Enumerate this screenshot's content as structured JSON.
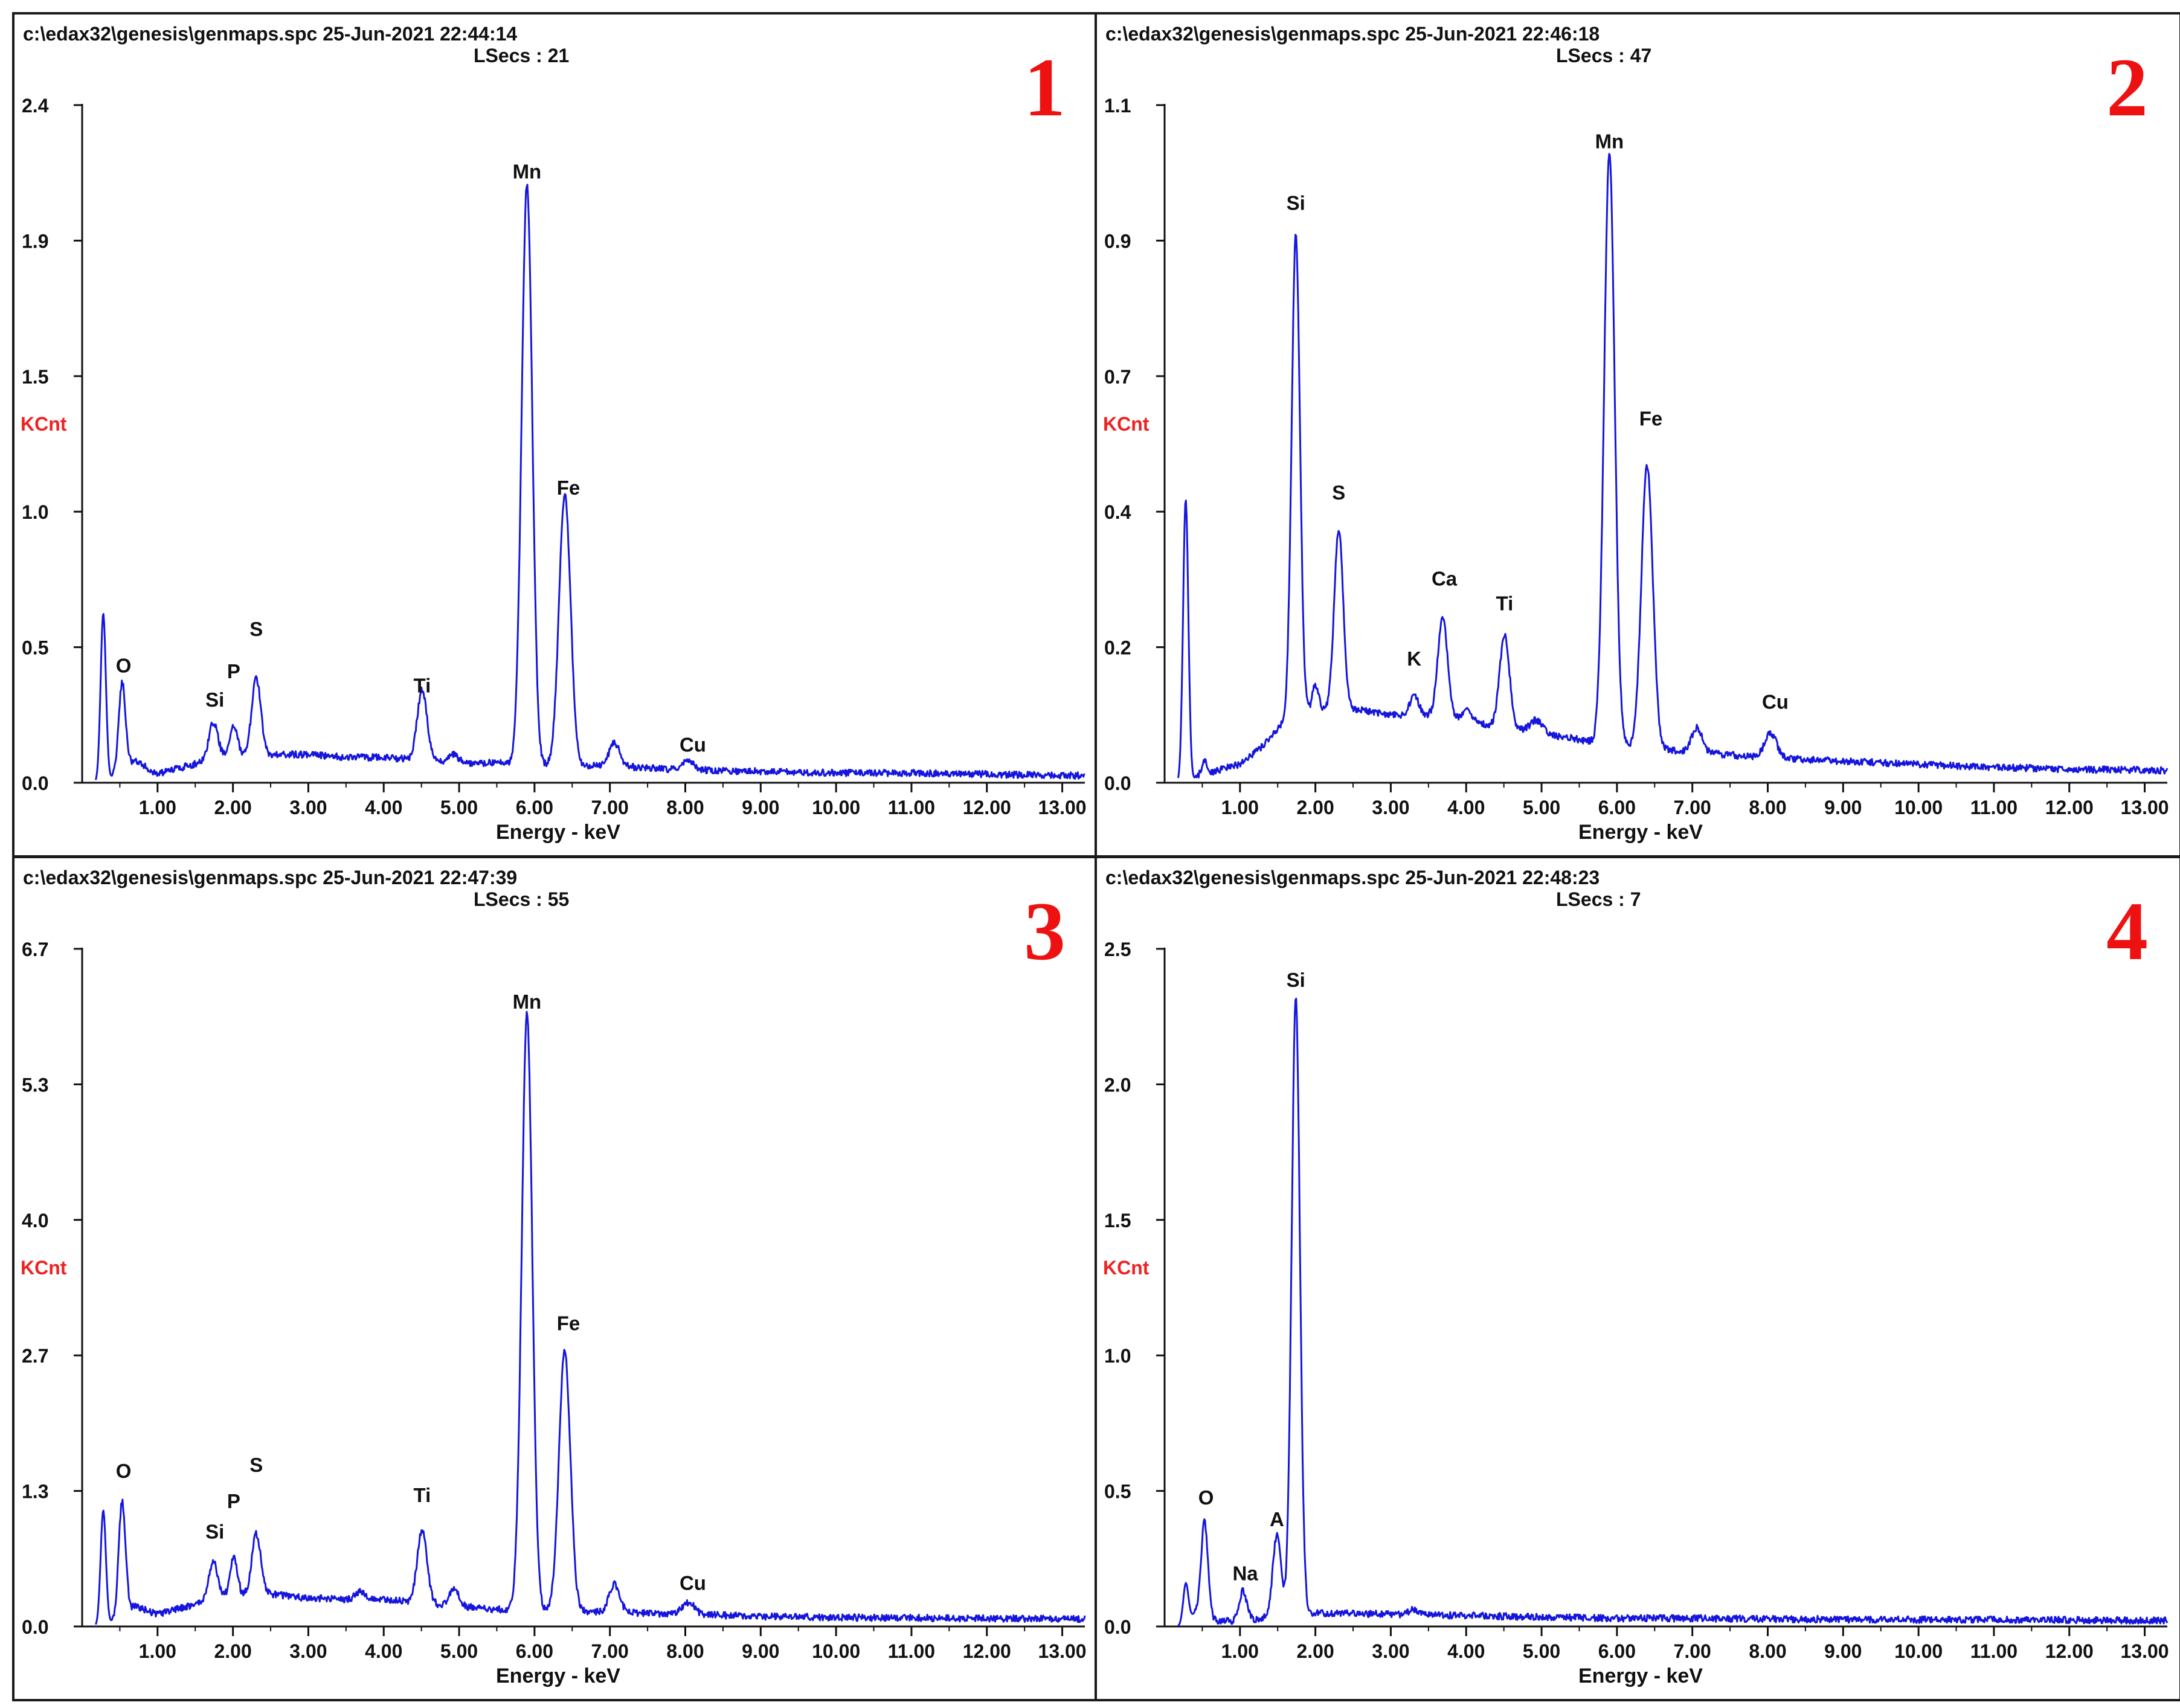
{
  "colors": {
    "trace": "#1515dd",
    "ylabel": "#ee2222",
    "panel_number": "#ee1111",
    "axis": "#111111"
  },
  "chart_data": [
    {
      "type": "line",
      "panel_number": "1",
      "file": "c:\\edax32\\genesis\\genmaps.spc",
      "date": "25-Jun-2021",
      "time": "22:44:14",
      "lsecs_label": "LSecs :",
      "lsecs": "21",
      "xlabel": "Energy - keV",
      "ylabel": "KCnt",
      "xlim": [
        0,
        13.3
      ],
      "ylim": [
        0,
        2.4
      ],
      "xticks": [
        "1.00",
        "2.00",
        "3.00",
        "4.00",
        "5.00",
        "6.00",
        "7.00",
        "8.00",
        "9.00",
        "10.00",
        "11.00",
        "12.00",
        "13.00"
      ],
      "yticks": [
        "0.0",
        "0.5",
        "1.0",
        "1.5",
        "1.9",
        "2.4"
      ],
      "baseline": [
        [
          0.18,
          0
        ],
        [
          0.3,
          0
        ],
        [
          0.7,
          0.08
        ],
        [
          1.0,
          0.03
        ],
        [
          1.4,
          0.06
        ],
        [
          2.0,
          0.1
        ],
        [
          2.5,
          0.1
        ],
        [
          3.0,
          0.1
        ],
        [
          3.5,
          0.09
        ],
        [
          4.0,
          0.09
        ],
        [
          4.5,
          0.08
        ],
        [
          5.0,
          0.07
        ],
        [
          5.5,
          0.07
        ],
        [
          6.0,
          0.06
        ],
        [
          7.0,
          0.06
        ],
        [
          8.0,
          0.045
        ],
        [
          9.0,
          0.04
        ],
        [
          10.0,
          0.035
        ],
        [
          11.0,
          0.035
        ],
        [
          12.0,
          0.03
        ],
        [
          13.3,
          0.025
        ]
      ],
      "peaks": [
        {
          "x": 0.28,
          "h": 0.6,
          "w": 0.035,
          "label": ""
        },
        {
          "x": 0.53,
          "h": 0.31,
          "w": 0.045,
          "label": "O"
        },
        {
          "x": 1.74,
          "h": 0.13,
          "w": 0.06,
          "label": "Si"
        },
        {
          "x": 2.01,
          "h": 0.1,
          "w": 0.05,
          "label": "P"
        },
        {
          "x": 2.31,
          "h": 0.27,
          "w": 0.06,
          "label": "S"
        },
        {
          "x": 4.51,
          "h": 0.25,
          "w": 0.065,
          "label": "Ti"
        },
        {
          "x": 4.93,
          "h": 0.03,
          "w": 0.06,
          "label": ""
        },
        {
          "x": 5.9,
          "h": 2.06,
          "w": 0.07,
          "label": "Mn"
        },
        {
          "x": 6.4,
          "h": 0.95,
          "w": 0.075,
          "label": "Fe"
        },
        {
          "x": 6.49,
          "h": 0.03,
          "w": 0.06,
          "label": ""
        },
        {
          "x": 7.06,
          "h": 0.08,
          "w": 0.07,
          "label": ""
        },
        {
          "x": 8.04,
          "h": 0.03,
          "w": 0.08,
          "label": "Cu"
        }
      ],
      "labels": [
        {
          "text": "O",
          "x": 0.55,
          "y": 0.39
        },
        {
          "text": "Si",
          "x": 1.76,
          "y": 0.27
        },
        {
          "text": "P",
          "x": 2.01,
          "y": 0.37
        },
        {
          "text": "S",
          "x": 2.31,
          "y": 0.52
        },
        {
          "text": "Ti",
          "x": 4.51,
          "y": 0.32
        },
        {
          "text": "Mn",
          "x": 5.9,
          "y": 2.14
        },
        {
          "text": "Fe",
          "x": 6.45,
          "y": 1.02
        },
        {
          "text": "Cu",
          "x": 8.1,
          "y": 0.11
        }
      ]
    },
    {
      "type": "line",
      "panel_number": "2",
      "file": "c:\\edax32\\genesis\\genmaps.spc",
      "date": "25-Jun-2021",
      "time": "22:46:18",
      "lsecs_label": "LSecs :",
      "lsecs": "47",
      "xlabel": "Energy - keV",
      "ylabel": "KCnt",
      "xlim": [
        0,
        13.3
      ],
      "ylim": [
        0,
        1.1
      ],
      "xticks": [
        "1.00",
        "2.00",
        "3.00",
        "4.00",
        "5.00",
        "6.00",
        "7.00",
        "8.00",
        "9.00",
        "10.00",
        "11.00",
        "12.00",
        "13.00"
      ],
      "yticks": [
        "0.0",
        "0.2",
        "0.4",
        "0.7",
        "0.9",
        "1.1"
      ],
      "baseline": [
        [
          0.18,
          0
        ],
        [
          0.3,
          0
        ],
        [
          0.45,
          0.01
        ],
        [
          0.7,
          0.02
        ],
        [
          1.0,
          0.03
        ],
        [
          1.3,
          0.06
        ],
        [
          1.6,
          0.1
        ],
        [
          2.0,
          0.12
        ],
        [
          2.5,
          0.12
        ],
        [
          3.0,
          0.11
        ],
        [
          3.5,
          0.11
        ],
        [
          4.0,
          0.1
        ],
        [
          4.5,
          0.09
        ],
        [
          5.0,
          0.08
        ],
        [
          5.5,
          0.07
        ],
        [
          6.0,
          0.06
        ],
        [
          6.5,
          0.055
        ],
        [
          7.0,
          0.05
        ],
        [
          7.5,
          0.045
        ],
        [
          8.0,
          0.04
        ],
        [
          9.0,
          0.035
        ],
        [
          10.0,
          0.03
        ],
        [
          11.0,
          0.025
        ],
        [
          12.0,
          0.022
        ],
        [
          13.3,
          0.02
        ]
      ],
      "peaks": [
        {
          "x": 0.28,
          "h": 0.46,
          "w": 0.035,
          "label": ""
        },
        {
          "x": 0.53,
          "h": 0.02,
          "w": 0.04,
          "label": ""
        },
        {
          "x": 1.74,
          "h": 0.78,
          "w": 0.055,
          "label": "Si"
        },
        {
          "x": 2.0,
          "h": 0.04,
          "w": 0.04,
          "label": ""
        },
        {
          "x": 2.31,
          "h": 0.29,
          "w": 0.06,
          "label": "S"
        },
        {
          "x": 3.31,
          "h": 0.03,
          "w": 0.06,
          "label": "K"
        },
        {
          "x": 3.69,
          "h": 0.16,
          "w": 0.065,
          "label": "Ca"
        },
        {
          "x": 4.01,
          "h": 0.02,
          "w": 0.06,
          "label": ""
        },
        {
          "x": 4.51,
          "h": 0.15,
          "w": 0.065,
          "label": "Ti"
        },
        {
          "x": 4.93,
          "h": 0.02,
          "w": 0.08,
          "label": ""
        },
        {
          "x": 5.9,
          "h": 0.96,
          "w": 0.07,
          "label": "Mn"
        },
        {
          "x": 6.4,
          "h": 0.46,
          "w": 0.075,
          "label": "Fe"
        },
        {
          "x": 7.06,
          "h": 0.04,
          "w": 0.07,
          "label": ""
        },
        {
          "x": 8.04,
          "h": 0.04,
          "w": 0.08,
          "label": "Cu"
        }
      ],
      "labels": [
        {
          "text": "Si",
          "x": 1.74,
          "y": 0.93
        },
        {
          "text": "S",
          "x": 2.31,
          "y": 0.46
        },
        {
          "text": "K",
          "x": 3.31,
          "y": 0.19
        },
        {
          "text": "Ca",
          "x": 3.71,
          "y": 0.32
        },
        {
          "text": "Ti",
          "x": 4.51,
          "y": 0.28
        },
        {
          "text": "Mn",
          "x": 5.9,
          "y": 1.03
        },
        {
          "text": "Fe",
          "x": 6.45,
          "y": 0.58
        },
        {
          "text": "Cu",
          "x": 8.1,
          "y": 0.12
        }
      ]
    },
    {
      "type": "line",
      "panel_number": "3",
      "file": "c:\\edax32\\genesis\\genmaps.spc",
      "date": "25-Jun-2021",
      "time": "22:47:39",
      "lsecs_label": "LSecs :",
      "lsecs": "55",
      "xlabel": "Energy - keV",
      "ylabel": "KCnt",
      "xlim": [
        0,
        13.3
      ],
      "ylim": [
        0,
        6.7
      ],
      "xticks": [
        "1.00",
        "2.00",
        "3.00",
        "4.00",
        "5.00",
        "6.00",
        "7.00",
        "8.00",
        "9.00",
        "10.00",
        "11.00",
        "12.00",
        "13.00"
      ],
      "yticks": [
        "0.0",
        "1.3",
        "2.7",
        "4.0",
        "5.3",
        "6.7"
      ],
      "baseline": [
        [
          0.18,
          0
        ],
        [
          0.3,
          0
        ],
        [
          0.7,
          0.2
        ],
        [
          1.0,
          0.12
        ],
        [
          1.4,
          0.2
        ],
        [
          2.0,
          0.3
        ],
        [
          2.5,
          0.32
        ],
        [
          3.0,
          0.28
        ],
        [
          3.5,
          0.27
        ],
        [
          4.0,
          0.27
        ],
        [
          4.5,
          0.23
        ],
        [
          5.0,
          0.2
        ],
        [
          5.5,
          0.17
        ],
        [
          6.0,
          0.16
        ],
        [
          7.0,
          0.14
        ],
        [
          8.0,
          0.12
        ],
        [
          9.0,
          0.1
        ],
        [
          10.0,
          0.09
        ],
        [
          11.0,
          0.085
        ],
        [
          12.0,
          0.08
        ],
        [
          13.3,
          0.075
        ]
      ],
      "peaks": [
        {
          "x": 0.28,
          "h": 1.15,
          "w": 0.035,
          "label": ""
        },
        {
          "x": 0.53,
          "h": 1.12,
          "w": 0.045,
          "label": "O"
        },
        {
          "x": 1.74,
          "h": 0.38,
          "w": 0.06,
          "label": "Si"
        },
        {
          "x": 2.01,
          "h": 0.38,
          "w": 0.05,
          "label": "P"
        },
        {
          "x": 2.31,
          "h": 0.6,
          "w": 0.06,
          "label": "S"
        },
        {
          "x": 3.69,
          "h": 0.08,
          "w": 0.06,
          "label": ""
        },
        {
          "x": 4.51,
          "h": 0.72,
          "w": 0.065,
          "label": "Ti"
        },
        {
          "x": 4.93,
          "h": 0.18,
          "w": 0.06,
          "label": ""
        },
        {
          "x": 5.9,
          "h": 5.9,
          "w": 0.07,
          "label": "Mn"
        },
        {
          "x": 6.4,
          "h": 2.57,
          "w": 0.075,
          "label": "Fe"
        },
        {
          "x": 7.06,
          "h": 0.28,
          "w": 0.07,
          "label": ""
        },
        {
          "x": 8.04,
          "h": 0.12,
          "w": 0.08,
          "label": "Cu"
        }
      ],
      "labels": [
        {
          "text": "O",
          "x": 0.55,
          "y": 1.47
        },
        {
          "text": "Si",
          "x": 1.76,
          "y": 0.87
        },
        {
          "text": "P",
          "x": 2.01,
          "y": 1.17
        },
        {
          "text": "S",
          "x": 2.31,
          "y": 1.53
        },
        {
          "text": "Ti",
          "x": 4.51,
          "y": 1.23
        },
        {
          "text": "Mn",
          "x": 5.9,
          "y": 6.11
        },
        {
          "text": "Fe",
          "x": 6.45,
          "y": 2.93
        },
        {
          "text": "Cu",
          "x": 8.1,
          "y": 0.36
        }
      ]
    },
    {
      "type": "line",
      "panel_number": "4",
      "file": "c:\\edax32\\genesis\\genmaps.spc",
      "date": "25-Jun-2021",
      "time": "22:48:23",
      "lsecs_label": "LSecs :",
      "lsecs": "7",
      "xlabel": "Energy - keV",
      "ylabel": "KCnt",
      "xlim": [
        0,
        13.3
      ],
      "ylim": [
        0,
        2.5
      ],
      "xticks": [
        "1.00",
        "2.00",
        "3.00",
        "4.00",
        "5.00",
        "6.00",
        "7.00",
        "8.00",
        "9.00",
        "10.00",
        "11.00",
        "12.00",
        "13.00"
      ],
      "yticks": [
        "0.0",
        "0.5",
        "1.0",
        "1.5",
        "2.0",
        "2.5"
      ],
      "baseline": [
        [
          0.18,
          0
        ],
        [
          0.25,
          0
        ],
        [
          0.4,
          0.05
        ],
        [
          0.7,
          0.02
        ],
        [
          1.0,
          0.02
        ],
        [
          1.3,
          0.03
        ],
        [
          1.6,
          0.04
        ],
        [
          2.0,
          0.05
        ],
        [
          3.0,
          0.045
        ],
        [
          4.0,
          0.04
        ],
        [
          5.0,
          0.035
        ],
        [
          6.0,
          0.03
        ],
        [
          7.0,
          0.03
        ],
        [
          8.0,
          0.028
        ],
        [
          9.0,
          0.026
        ],
        [
          10.0,
          0.025
        ],
        [
          11.0,
          0.025
        ],
        [
          12.0,
          0.024
        ],
        [
          13.3,
          0.022
        ]
      ],
      "peaks": [
        {
          "x": 0.28,
          "h": 0.15,
          "w": 0.035,
          "label": ""
        },
        {
          "x": 0.53,
          "h": 0.35,
          "w": 0.045,
          "label": "O"
        },
        {
          "x": 1.04,
          "h": 0.11,
          "w": 0.05,
          "label": "Na"
        },
        {
          "x": 1.49,
          "h": 0.3,
          "w": 0.055,
          "label": "A"
        },
        {
          "x": 1.74,
          "h": 2.27,
          "w": 0.055,
          "label": "Si"
        },
        {
          "x": 3.31,
          "h": 0.02,
          "w": 0.06,
          "label": ""
        }
      ],
      "labels": [
        {
          "text": "O",
          "x": 0.55,
          "y": 0.45
        },
        {
          "text": "Na",
          "x": 1.07,
          "y": 0.17
        },
        {
          "text": "A",
          "x": 1.49,
          "y": 0.37
        },
        {
          "text": "Si",
          "x": 1.74,
          "y": 2.36
        }
      ]
    }
  ]
}
